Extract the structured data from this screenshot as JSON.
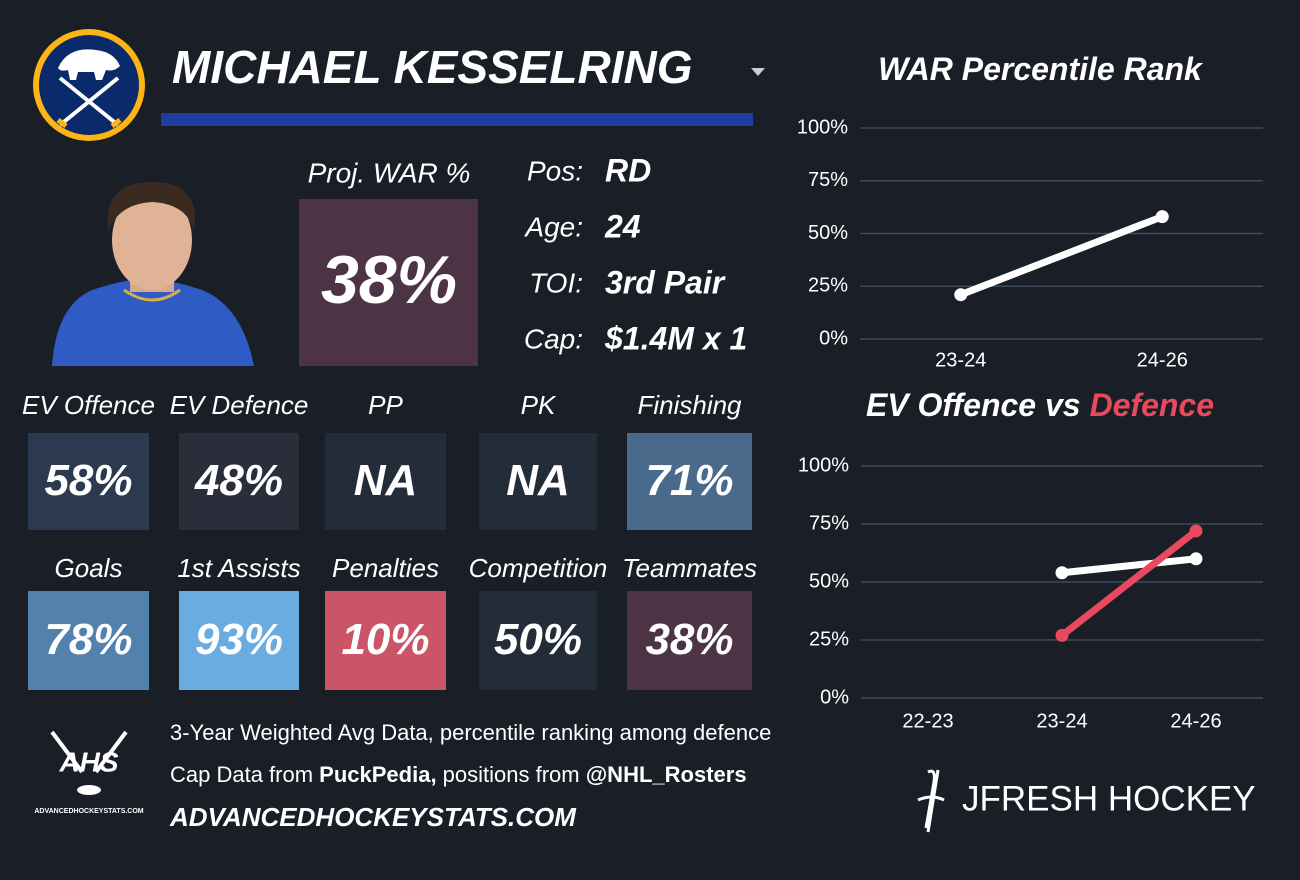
{
  "player": {
    "name": "MICHAEL KESSELRING"
  },
  "projection": {
    "label": "Proj. WAR %",
    "value": "38%",
    "color": "#4d3444"
  },
  "bio": [
    {
      "label": "Pos:",
      "value": "RD"
    },
    {
      "label": "Age:",
      "value": "24"
    },
    {
      "label": "TOI:",
      "value": "3rd Pair"
    },
    {
      "label": "Cap:",
      "value": "$1.4M x 1"
    }
  ],
  "stats": [
    [
      {
        "label": "EV Offence",
        "value": "58%",
        "color": "#2c3a4f"
      },
      {
        "label": "EV Defence",
        "value": "48%",
        "color": "#2a2e3b"
      },
      {
        "label": "PP",
        "value": "NA",
        "color": "#232d3a"
      },
      {
        "label": "PK",
        "value": "NA",
        "color": "#232d3a"
      },
      {
        "label": "Finishing",
        "value": "71%",
        "color": "#4a6a8c"
      }
    ],
    [
      {
        "label": "Goals",
        "value": "78%",
        "color": "#5381ae"
      },
      {
        "label": "1st Assists",
        "value": "93%",
        "color": "#6aabe0"
      },
      {
        "label": "Penalties",
        "value": "10%",
        "color": "#cb5567"
      },
      {
        "label": "Competition",
        "value": "50%",
        "color": "#232d3a"
      },
      {
        "label": "Teammates",
        "value": "38%",
        "color": "#4d3444"
      }
    ]
  ],
  "footer": {
    "line1": "3-Year Weighted Avg Data, percentile ranking among defence",
    "line2": [
      "Cap Data from ",
      "PuckPedia,",
      " positions from ",
      "@NHL_Rosters"
    ],
    "line3": "ADVANCEDHOCKEYSTATS.COM",
    "ahs_logo": "AHS",
    "ahs_url": "ADVANCEDHOCKEYSTATS.COM",
    "brand": "JFRESH HOCKEY"
  },
  "chart_data": [
    {
      "type": "line",
      "title": "WAR Percentile Rank",
      "categories": [
        "23-24",
        "24-26"
      ],
      "series": [
        {
          "color": "#ffffff",
          "values": [
            21,
            58
          ]
        }
      ],
      "ylim": [
        0,
        100
      ],
      "yticks": [
        {
          "value": 0,
          "label": "0%"
        },
        {
          "value": 25,
          "label": "25%"
        },
        {
          "value": 50,
          "label": "50%"
        },
        {
          "value": 75,
          "label": "75%"
        },
        {
          "value": 100,
          "label": "100%"
        }
      ],
      "grid": true
    },
    {
      "type": "line",
      "title": "EV Offence vs",
      "title_accent": "Defence",
      "categories": [
        "22-23",
        "23-24",
        "24-26"
      ],
      "series": [
        {
          "color": "#ffffff",
          "values": [
            null,
            54,
            60
          ]
        },
        {
          "color": "#e8495d",
          "values": [
            null,
            27,
            72
          ]
        }
      ],
      "ylim": [
        0,
        100
      ],
      "yticks": [
        {
          "value": 0,
          "label": "0%"
        },
        {
          "value": 25,
          "label": "25%"
        },
        {
          "value": 50,
          "label": "50%"
        },
        {
          "value": 75,
          "label": "75%"
        },
        {
          "value": 100,
          "label": "100%"
        }
      ],
      "grid": true
    }
  ]
}
